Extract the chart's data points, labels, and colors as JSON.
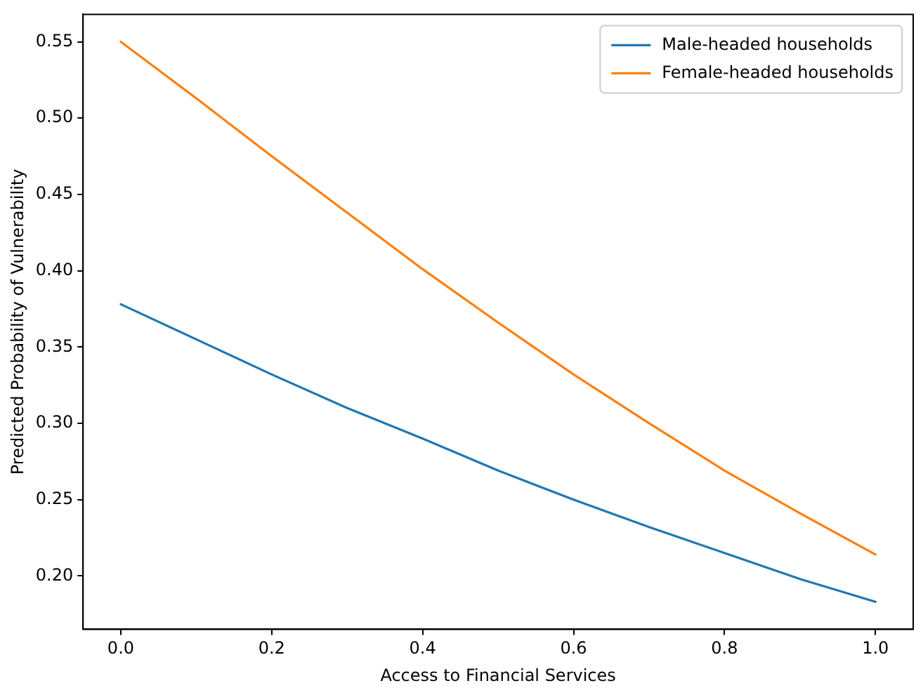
{
  "chart_data": {
    "type": "line",
    "xlabel": "Access to Financial Services",
    "ylabel": "Predicted Probability of Vulnerability",
    "x": [
      0,
      0.1,
      0.2,
      0.3,
      0.4,
      0.5,
      0.6,
      0.7,
      0.8,
      0.9,
      1.0
    ],
    "series": [
      {
        "name": "Male-headed households",
        "color": "#1f77b4",
        "values": [
          0.378,
          0.355,
          0.332,
          0.31,
          0.29,
          0.269,
          0.25,
          0.232,
          0.215,
          0.198,
          0.183
        ]
      },
      {
        "name": "Female-headed households",
        "color": "#ff7f0e",
        "values": [
          0.55,
          0.513,
          0.475,
          0.438,
          0.401,
          0.366,
          0.332,
          0.3,
          0.269,
          0.241,
          0.214
        ]
      }
    ],
    "xlim": [
      -0.05,
      1.05
    ],
    "ylim": [
      0.165,
      0.568
    ],
    "xticks": [
      {
        "value": 0,
        "label": "0.0"
      },
      {
        "value": 0.2,
        "label": "0.2"
      },
      {
        "value": 0.4,
        "label": "0.4"
      },
      {
        "value": 0.6,
        "label": "0.6"
      },
      {
        "value": 0.8,
        "label": "0.8"
      },
      {
        "value": 1,
        "label": "1.0"
      }
    ],
    "yticks": [
      {
        "value": 0.2,
        "label": "0.20"
      },
      {
        "value": 0.25,
        "label": "0.25"
      },
      {
        "value": 0.3,
        "label": "0.30"
      },
      {
        "value": 0.35,
        "label": "0.35"
      },
      {
        "value": 0.4,
        "label": "0.40"
      },
      {
        "value": 0.45,
        "label": "0.45"
      },
      {
        "value": 0.5,
        "label": "0.50"
      },
      {
        "value": 0.55,
        "label": "0.55"
      }
    ],
    "grid": false,
    "legend": "top right",
    "marker": "none",
    "line_style": "solid"
  }
}
